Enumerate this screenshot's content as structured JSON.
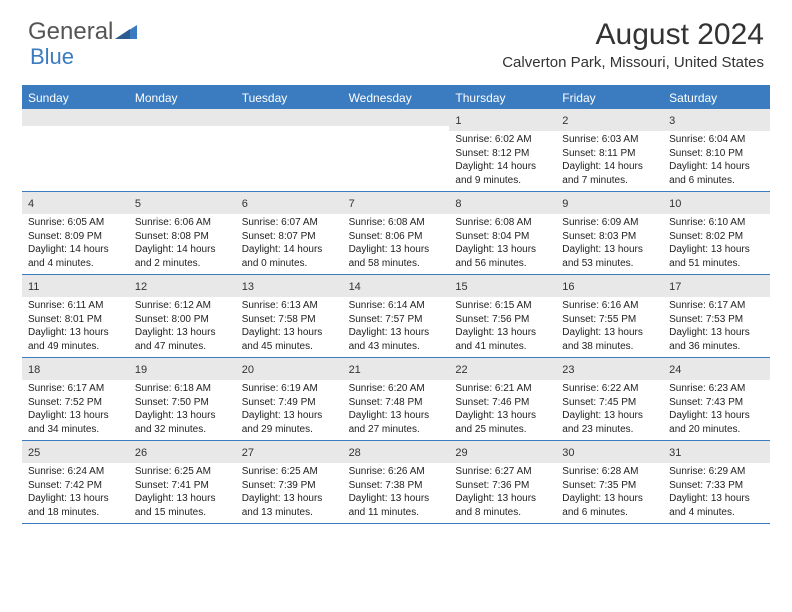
{
  "brand": {
    "word1": "General",
    "word2": "Blue"
  },
  "title": "August 2024",
  "location": "Calverton Park, Missouri, United States",
  "colors": {
    "header_bar": "#3b7bbf",
    "daynum_bg": "#e8e8e8",
    "text_dark": "#333333",
    "logo_gray": "#555555",
    "logo_blue": "#3b7bbf",
    "background": "#ffffff"
  },
  "weekdays": [
    "Sunday",
    "Monday",
    "Tuesday",
    "Wednesday",
    "Thursday",
    "Friday",
    "Saturday"
  ],
  "weeks": [
    [
      {
        "n": "",
        "lines": []
      },
      {
        "n": "",
        "lines": []
      },
      {
        "n": "",
        "lines": []
      },
      {
        "n": "",
        "lines": []
      },
      {
        "n": "1",
        "lines": [
          "Sunrise: 6:02 AM",
          "Sunset: 8:12 PM",
          "Daylight: 14 hours",
          "and 9 minutes."
        ]
      },
      {
        "n": "2",
        "lines": [
          "Sunrise: 6:03 AM",
          "Sunset: 8:11 PM",
          "Daylight: 14 hours",
          "and 7 minutes."
        ]
      },
      {
        "n": "3",
        "lines": [
          "Sunrise: 6:04 AM",
          "Sunset: 8:10 PM",
          "Daylight: 14 hours",
          "and 6 minutes."
        ]
      }
    ],
    [
      {
        "n": "4",
        "lines": [
          "Sunrise: 6:05 AM",
          "Sunset: 8:09 PM",
          "Daylight: 14 hours",
          "and 4 minutes."
        ]
      },
      {
        "n": "5",
        "lines": [
          "Sunrise: 6:06 AM",
          "Sunset: 8:08 PM",
          "Daylight: 14 hours",
          "and 2 minutes."
        ]
      },
      {
        "n": "6",
        "lines": [
          "Sunrise: 6:07 AM",
          "Sunset: 8:07 PM",
          "Daylight: 14 hours",
          "and 0 minutes."
        ]
      },
      {
        "n": "7",
        "lines": [
          "Sunrise: 6:08 AM",
          "Sunset: 8:06 PM",
          "Daylight: 13 hours",
          "and 58 minutes."
        ]
      },
      {
        "n": "8",
        "lines": [
          "Sunrise: 6:08 AM",
          "Sunset: 8:04 PM",
          "Daylight: 13 hours",
          "and 56 minutes."
        ]
      },
      {
        "n": "9",
        "lines": [
          "Sunrise: 6:09 AM",
          "Sunset: 8:03 PM",
          "Daylight: 13 hours",
          "and 53 minutes."
        ]
      },
      {
        "n": "10",
        "lines": [
          "Sunrise: 6:10 AM",
          "Sunset: 8:02 PM",
          "Daylight: 13 hours",
          "and 51 minutes."
        ]
      }
    ],
    [
      {
        "n": "11",
        "lines": [
          "Sunrise: 6:11 AM",
          "Sunset: 8:01 PM",
          "Daylight: 13 hours",
          "and 49 minutes."
        ]
      },
      {
        "n": "12",
        "lines": [
          "Sunrise: 6:12 AM",
          "Sunset: 8:00 PM",
          "Daylight: 13 hours",
          "and 47 minutes."
        ]
      },
      {
        "n": "13",
        "lines": [
          "Sunrise: 6:13 AM",
          "Sunset: 7:58 PM",
          "Daylight: 13 hours",
          "and 45 minutes."
        ]
      },
      {
        "n": "14",
        "lines": [
          "Sunrise: 6:14 AM",
          "Sunset: 7:57 PM",
          "Daylight: 13 hours",
          "and 43 minutes."
        ]
      },
      {
        "n": "15",
        "lines": [
          "Sunrise: 6:15 AM",
          "Sunset: 7:56 PM",
          "Daylight: 13 hours",
          "and 41 minutes."
        ]
      },
      {
        "n": "16",
        "lines": [
          "Sunrise: 6:16 AM",
          "Sunset: 7:55 PM",
          "Daylight: 13 hours",
          "and 38 minutes."
        ]
      },
      {
        "n": "17",
        "lines": [
          "Sunrise: 6:17 AM",
          "Sunset: 7:53 PM",
          "Daylight: 13 hours",
          "and 36 minutes."
        ]
      }
    ],
    [
      {
        "n": "18",
        "lines": [
          "Sunrise: 6:17 AM",
          "Sunset: 7:52 PM",
          "Daylight: 13 hours",
          "and 34 minutes."
        ]
      },
      {
        "n": "19",
        "lines": [
          "Sunrise: 6:18 AM",
          "Sunset: 7:50 PM",
          "Daylight: 13 hours",
          "and 32 minutes."
        ]
      },
      {
        "n": "20",
        "lines": [
          "Sunrise: 6:19 AM",
          "Sunset: 7:49 PM",
          "Daylight: 13 hours",
          "and 29 minutes."
        ]
      },
      {
        "n": "21",
        "lines": [
          "Sunrise: 6:20 AM",
          "Sunset: 7:48 PM",
          "Daylight: 13 hours",
          "and 27 minutes."
        ]
      },
      {
        "n": "22",
        "lines": [
          "Sunrise: 6:21 AM",
          "Sunset: 7:46 PM",
          "Daylight: 13 hours",
          "and 25 minutes."
        ]
      },
      {
        "n": "23",
        "lines": [
          "Sunrise: 6:22 AM",
          "Sunset: 7:45 PM",
          "Daylight: 13 hours",
          "and 23 minutes."
        ]
      },
      {
        "n": "24",
        "lines": [
          "Sunrise: 6:23 AM",
          "Sunset: 7:43 PM",
          "Daylight: 13 hours",
          "and 20 minutes."
        ]
      }
    ],
    [
      {
        "n": "25",
        "lines": [
          "Sunrise: 6:24 AM",
          "Sunset: 7:42 PM",
          "Daylight: 13 hours",
          "and 18 minutes."
        ]
      },
      {
        "n": "26",
        "lines": [
          "Sunrise: 6:25 AM",
          "Sunset: 7:41 PM",
          "Daylight: 13 hours",
          "and 15 minutes."
        ]
      },
      {
        "n": "27",
        "lines": [
          "Sunrise: 6:25 AM",
          "Sunset: 7:39 PM",
          "Daylight: 13 hours",
          "and 13 minutes."
        ]
      },
      {
        "n": "28",
        "lines": [
          "Sunrise: 6:26 AM",
          "Sunset: 7:38 PM",
          "Daylight: 13 hours",
          "and 11 minutes."
        ]
      },
      {
        "n": "29",
        "lines": [
          "Sunrise: 6:27 AM",
          "Sunset: 7:36 PM",
          "Daylight: 13 hours",
          "and 8 minutes."
        ]
      },
      {
        "n": "30",
        "lines": [
          "Sunrise: 6:28 AM",
          "Sunset: 7:35 PM",
          "Daylight: 13 hours",
          "and 6 minutes."
        ]
      },
      {
        "n": "31",
        "lines": [
          "Sunrise: 6:29 AM",
          "Sunset: 7:33 PM",
          "Daylight: 13 hours",
          "and 4 minutes."
        ]
      }
    ]
  ]
}
